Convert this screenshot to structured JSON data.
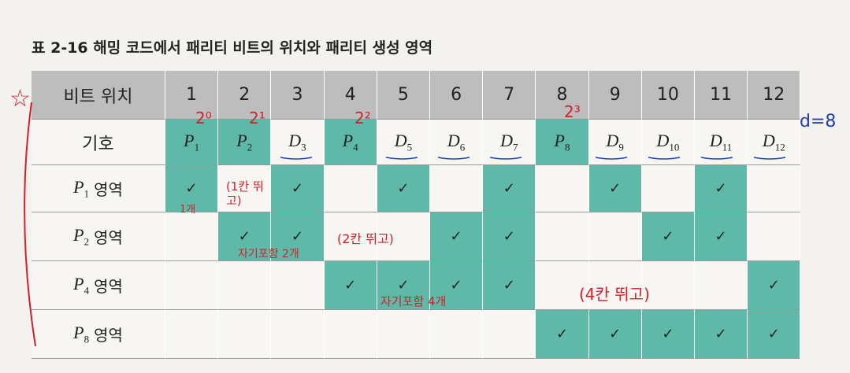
{
  "header": {
    "title": "표 2-16 해밍 코드에서 패리티 비트의 위치와 패리티 생성 영역"
  },
  "table": {
    "corner": "비트 위치",
    "positions": [
      "1",
      "2",
      "3",
      "4",
      "5",
      "6",
      "7",
      "8",
      "9",
      "10",
      "11",
      "12"
    ],
    "symbol_label": "기호",
    "symbols": [
      {
        "letter": "P",
        "sub": "1"
      },
      {
        "letter": "P",
        "sub": "2"
      },
      {
        "letter": "D",
        "sub": "3"
      },
      {
        "letter": "P",
        "sub": "4"
      },
      {
        "letter": "D",
        "sub": "5"
      },
      {
        "letter": "D",
        "sub": "6"
      },
      {
        "letter": "D",
        "sub": "7"
      },
      {
        "letter": "P",
        "sub": "8"
      },
      {
        "letter": "D",
        "sub": "9"
      },
      {
        "letter": "D",
        "sub": "10"
      },
      {
        "letter": "D",
        "sub": "11"
      },
      {
        "letter": "D",
        "sub": "12"
      }
    ],
    "rows": [
      {
        "letter": "P",
        "sub": "1",
        "suffix": "영역",
        "cells": [
          "✓",
          null,
          "✓",
          null,
          "✓",
          null,
          "✓",
          null,
          "✓",
          null,
          "✓",
          null
        ]
      },
      {
        "letter": "P",
        "sub": "2",
        "suffix": "영역",
        "cells": [
          null,
          "✓",
          "✓",
          null,
          null,
          "✓",
          "✓",
          null,
          null,
          "✓",
          "✓",
          null
        ]
      },
      {
        "letter": "P",
        "sub": "4",
        "suffix": "영역",
        "cells": [
          null,
          null,
          null,
          "✓",
          "✓",
          "✓",
          "✓",
          null,
          null,
          null,
          null,
          "✓"
        ]
      },
      {
        "letter": "P",
        "sub": "8",
        "suffix": "영역",
        "cells": [
          null,
          null,
          null,
          null,
          null,
          null,
          null,
          "✓",
          "✓",
          "✓",
          "✓",
          "✓"
        ]
      }
    ]
  },
  "annotations": {
    "star": "☆",
    "powers": [
      "2⁰",
      "2¹",
      "2²",
      "2³"
    ],
    "d": "d=8",
    "p1_count": "1개",
    "p1_skip": "(1칸 뛰고)",
    "p2_count": "자기포함 2개",
    "p2_skip": "(2칸 뛰고)",
    "p4_count": "자기포함 4개",
    "p4_skip": "(4칸 뛰고)"
  }
}
